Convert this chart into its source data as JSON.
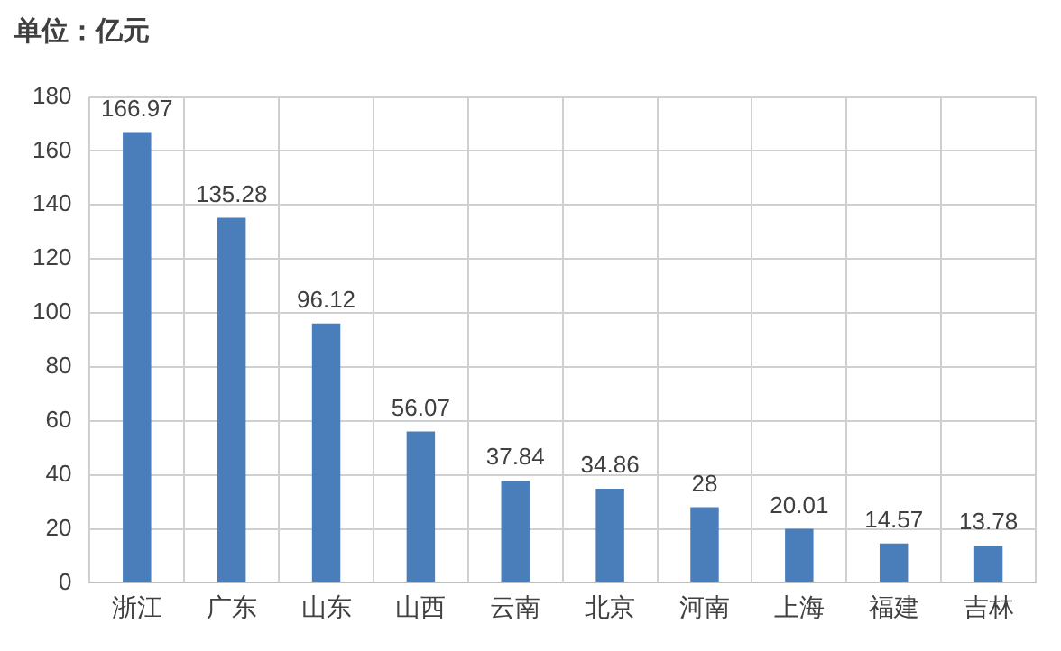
{
  "chart_data": {
    "type": "bar",
    "ylabel": "单位：亿元",
    "categories": [
      "浙江",
      "广东",
      "山东",
      "山西",
      "云南",
      "北京",
      "河南",
      "上海",
      "福建",
      "吉林"
    ],
    "values": [
      166.97,
      135.28,
      96.12,
      56.07,
      37.84,
      34.86,
      28,
      20.01,
      14.57,
      13.78
    ],
    "color": "#4a7ebb",
    "ylim": [
      0,
      180
    ],
    "yticks": [
      0,
      20,
      40,
      60,
      80,
      100,
      120,
      140,
      160,
      180
    ],
    "grid": true,
    "data_labels": true
  }
}
